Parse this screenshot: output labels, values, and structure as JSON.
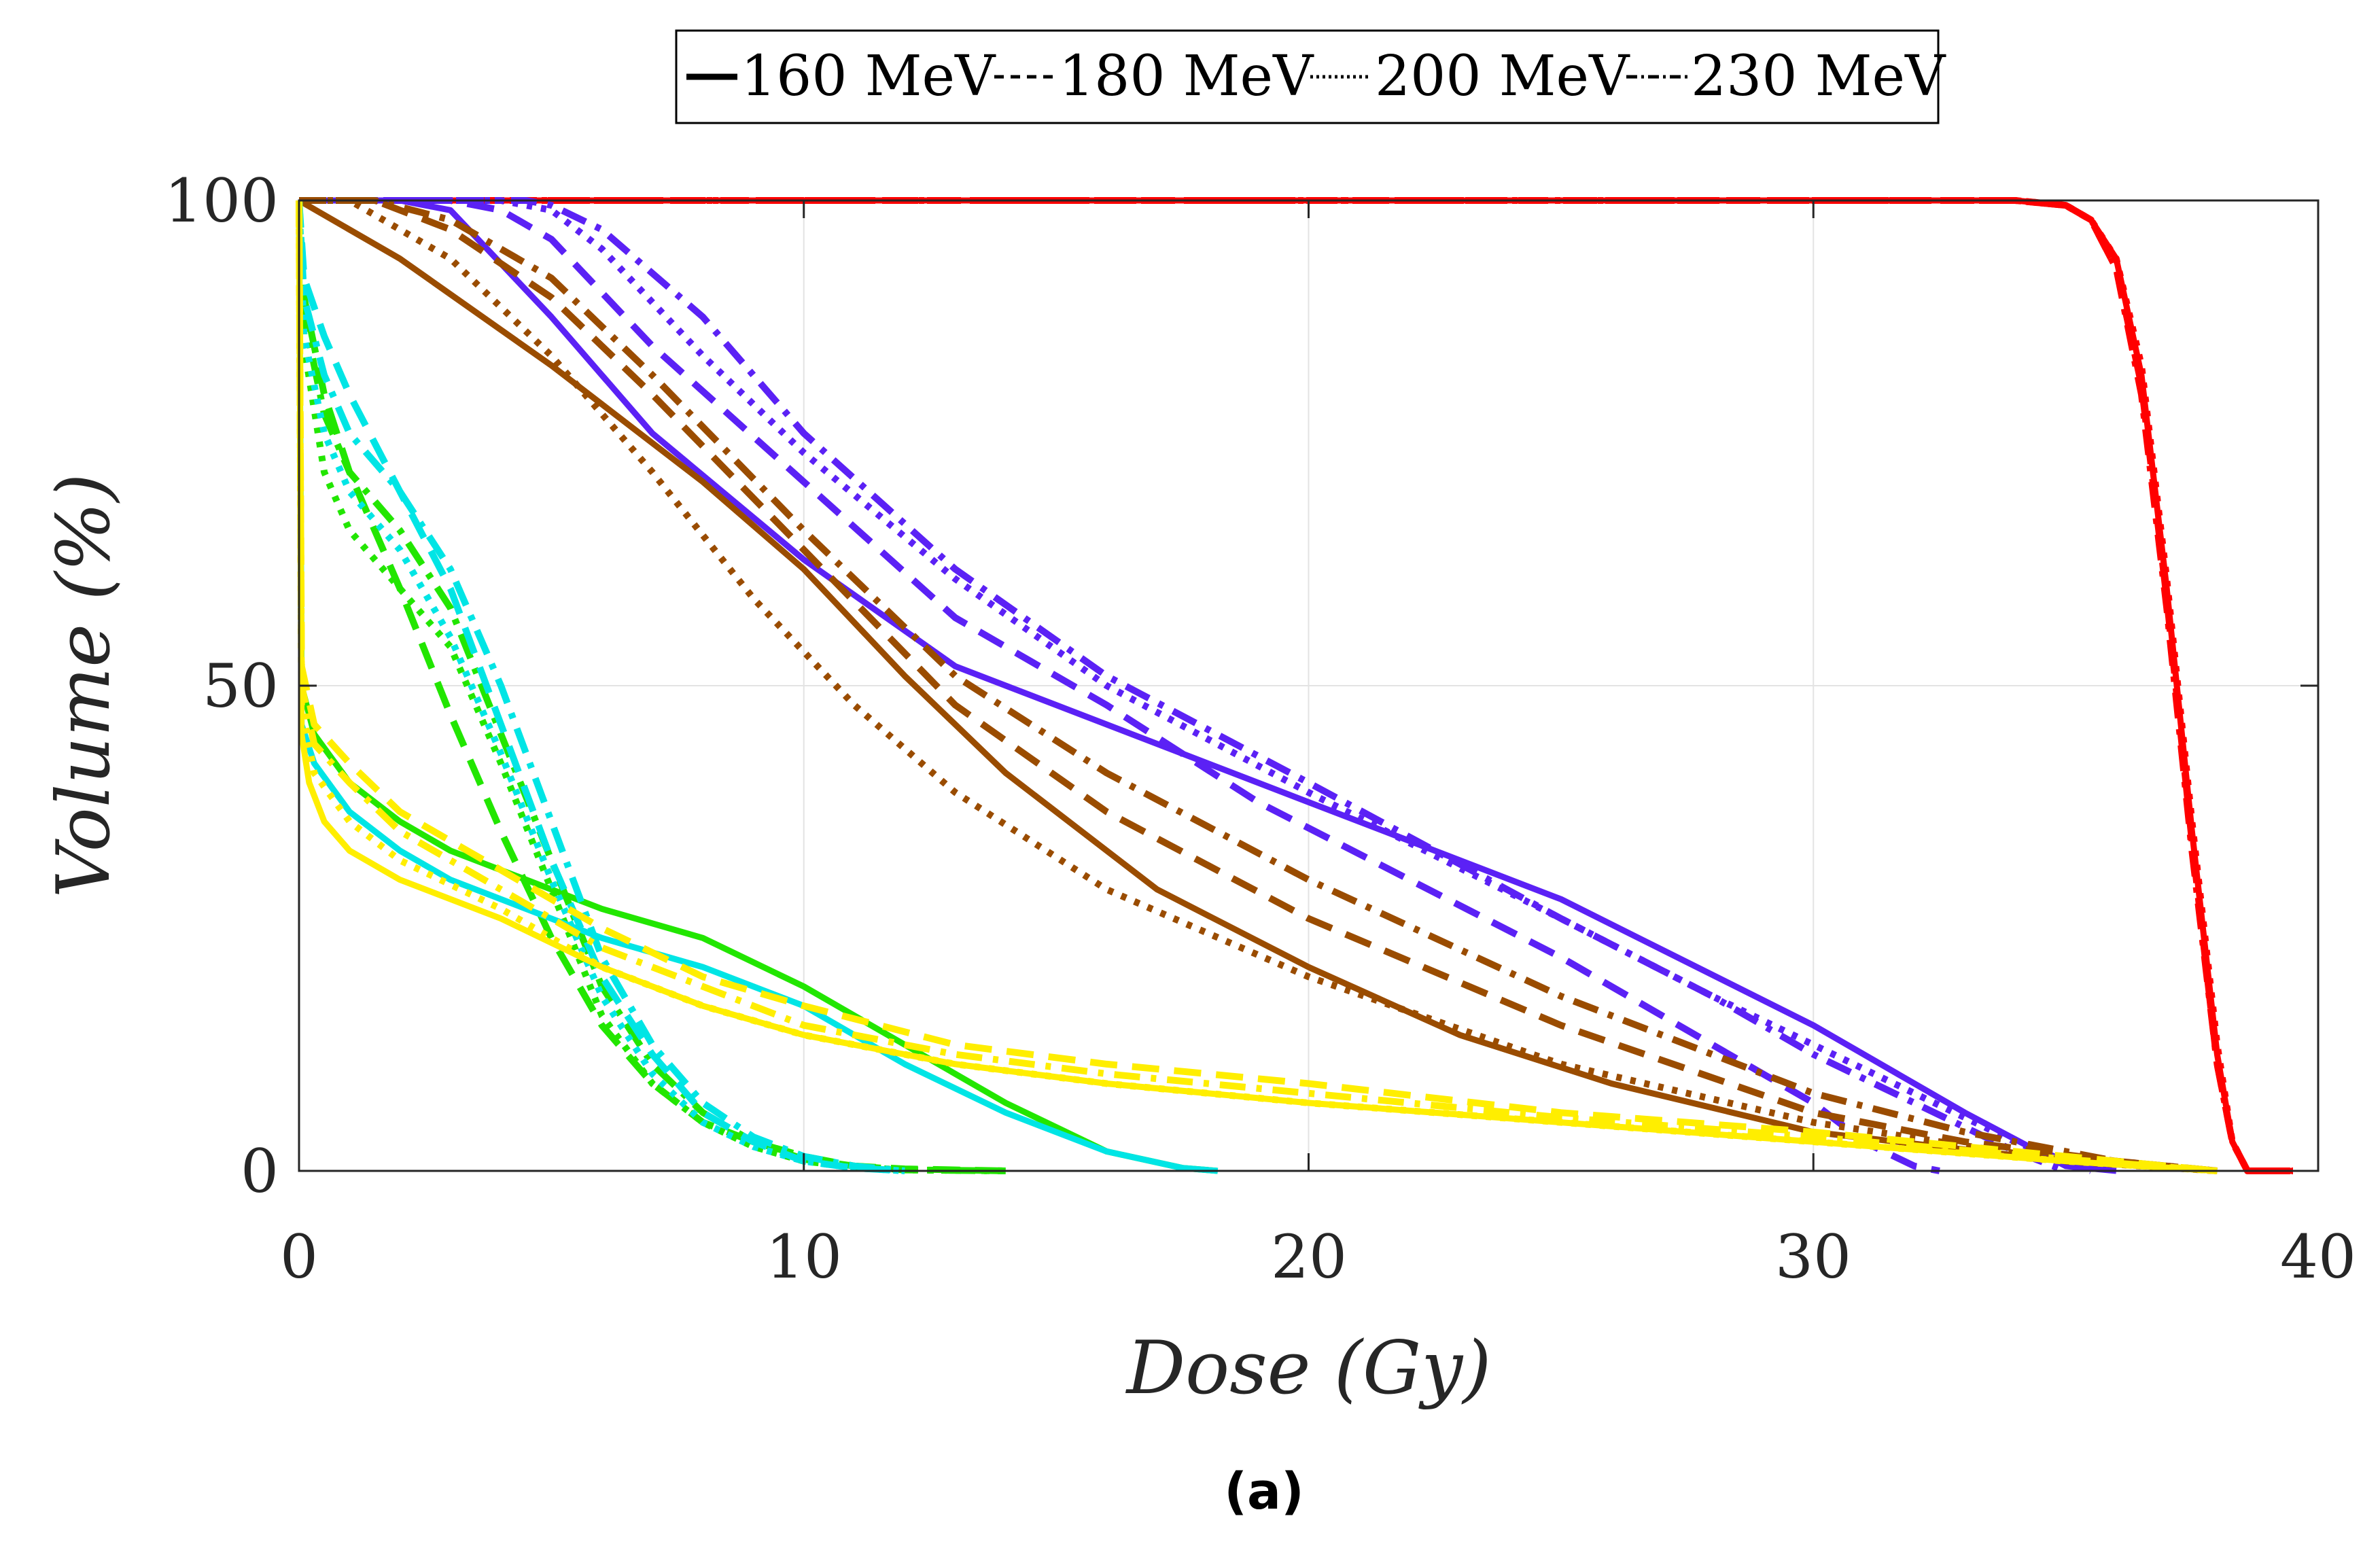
{
  "chart_data": {
    "type": "line",
    "title": "",
    "caption": "(a)",
    "xlabel": "Dose (Gy)",
    "ylabel": "Volume (%)",
    "xlim": [
      0,
      40
    ],
    "ylim": [
      0,
      100
    ],
    "xticks": [
      0,
      10,
      20,
      30,
      40
    ],
    "yticks": [
      0,
      50,
      100
    ],
    "xtick_labels": [
      "0",
      "10",
      "20",
      "30",
      "40"
    ],
    "ytick_labels": [
      "0",
      "50",
      "100"
    ],
    "grid": true,
    "legend_position": "top-center",
    "legend": [
      {
        "label": "160 MeV",
        "style": "solid"
      },
      {
        "label": "180 MeV",
        "style": "dashed"
      },
      {
        "label": "200 MeV",
        "style": "dotted"
      },
      {
        "label": "230 MeV",
        "style": "dashdot"
      }
    ],
    "series": [
      {
        "name": "red-160",
        "color": "#ff0000",
        "style": "solid",
        "x": [
          0,
          34.0,
          35.0,
          35.5,
          36.0,
          36.5,
          37.0,
          37.5,
          38.0,
          38.3,
          38.6,
          39.5
        ],
        "y": [
          100,
          100,
          99.5,
          98,
          94,
          82,
          60,
          35,
          12,
          3,
          0,
          0
        ]
      },
      {
        "name": "red-180",
        "color": "#ff0000",
        "style": "dashed",
        "x": [
          0,
          34.0,
          35.0,
          35.5,
          36.0,
          36.5,
          37.0,
          37.5,
          38.0,
          38.3,
          38.6,
          39.5
        ],
        "y": [
          100,
          100,
          99.5,
          98,
          93,
          81,
          59,
          34,
          11,
          3,
          0,
          0
        ]
      },
      {
        "name": "red-200",
        "color": "#ff0000",
        "style": "dotted",
        "x": [
          0,
          34.0,
          35.0,
          35.5,
          36.0,
          36.5,
          37.0,
          37.5,
          38.0,
          38.3,
          38.6,
          39.5
        ],
        "y": [
          100,
          100,
          99.5,
          98,
          94,
          83,
          61,
          36,
          13,
          3,
          0,
          0
        ]
      },
      {
        "name": "red-230",
        "color": "#ff0000",
        "style": "dashdot",
        "x": [
          0,
          34.0,
          35.0,
          35.5,
          36.0,
          36.5,
          37.0,
          37.5,
          38.0,
          38.3,
          38.6,
          39.5
        ],
        "y": [
          100,
          100,
          99.5,
          98,
          93,
          80,
          58,
          33,
          11,
          3,
          0,
          0
        ]
      },
      {
        "name": "violet-160",
        "color": "#5b21f5",
        "style": "solid",
        "x": [
          0,
          2,
          3,
          5,
          7,
          10,
          13,
          17,
          20,
          25,
          30,
          33,
          35,
          36
        ],
        "y": [
          100,
          100,
          99,
          88,
          76,
          63,
          52,
          44,
          38,
          28,
          15,
          6,
          0.5,
          0
        ]
      },
      {
        "name": "violet-180",
        "color": "#5b21f5",
        "style": "dashed",
        "x": [
          0,
          3,
          4,
          5,
          7,
          10,
          13,
          16,
          19,
          22,
          25,
          28,
          30,
          31,
          32,
          32.5
        ],
        "y": [
          100,
          100,
          99,
          96,
          85,
          71,
          57,
          48,
          38,
          30,
          22,
          13,
          7,
          3,
          0.5,
          0
        ]
      },
      {
        "name": "violet-200",
        "color": "#5b21f5",
        "style": "dotted",
        "x": [
          0,
          4,
          5,
          6,
          8,
          10,
          13,
          16,
          20,
          25,
          28,
          30,
          32,
          34,
          35,
          35.5
        ],
        "y": [
          100,
          100,
          99,
          95,
          84,
          74,
          61,
          50,
          39,
          26,
          18,
          13,
          8,
          3,
          1,
          0
        ]
      },
      {
        "name": "violet-230",
        "color": "#5b21f5",
        "style": "dashdot",
        "x": [
          0,
          4.5,
          5,
          6,
          8,
          10,
          13,
          16,
          20,
          25,
          28,
          30,
          32,
          34,
          35
        ],
        "y": [
          100,
          100,
          99.5,
          97,
          88,
          76,
          62,
          51,
          40,
          26,
          18,
          12,
          7,
          2,
          0
        ]
      },
      {
        "name": "brown-160",
        "color": "#9a4c00",
        "style": "solid",
        "x": [
          0,
          2,
          5,
          8,
          10,
          12,
          14,
          17,
          20,
          23,
          26,
          30,
          35,
          38
        ],
        "y": [
          100,
          94,
          83,
          71,
          62,
          51,
          41,
          29,
          21,
          14,
          9,
          4,
          1,
          0
        ]
      },
      {
        "name": "brown-180",
        "color": "#9a4c00",
        "style": "dashed",
        "x": [
          0,
          1.5,
          3,
          5,
          7,
          10,
          13,
          16,
          20,
          25,
          30,
          33,
          36,
          38
        ],
        "y": [
          100,
          100,
          97,
          90,
          80,
          64,
          48,
          37,
          26,
          15,
          6,
          3,
          1,
          0
        ]
      },
      {
        "name": "brown-200",
        "color": "#9a4c00",
        "style": "dotted",
        "x": [
          0,
          1,
          3,
          5,
          7,
          9,
          11,
          13,
          16,
          20,
          25,
          30,
          35,
          38
        ],
        "y": [
          100,
          100,
          94,
          84,
          72,
          59,
          48,
          39,
          29,
          20,
          11,
          5,
          1,
          0
        ]
      },
      {
        "name": "brown-230",
        "color": "#9a4c00",
        "style": "dashdot",
        "x": [
          0,
          1.5,
          3,
          5,
          7,
          10,
          13,
          16,
          20,
          25,
          30,
          33,
          36,
          38
        ],
        "y": [
          100,
          100,
          98,
          92,
          82,
          66,
          51,
          41,
          30,
          18,
          8,
          4,
          1,
          0
        ]
      },
      {
        "name": "green-160",
        "color": "#22e600",
        "style": "solid",
        "x": [
          0,
          0.05,
          0.3,
          1,
          2,
          3,
          4,
          6,
          8,
          10,
          12,
          14,
          16,
          17.5,
          18.2
        ],
        "y": [
          100,
          50,
          45,
          40,
          36,
          33,
          31,
          27,
          24,
          19,
          13,
          7,
          2,
          0.3,
          0
        ]
      },
      {
        "name": "green-180",
        "color": "#22e600",
        "style": "dashed",
        "x": [
          0,
          0.1,
          0.5,
          1,
          2,
          3,
          4,
          5,
          6,
          7,
          8,
          9,
          10,
          11,
          12,
          14
        ],
        "y": [
          100,
          90,
          80,
          72,
          60,
          47,
          35,
          24,
          15,
          9,
          5,
          3,
          1.5,
          0.5,
          0.2,
          0
        ]
      },
      {
        "name": "green-200",
        "color": "#22e600",
        "style": "dotted",
        "x": [
          0,
          0.1,
          0.5,
          1,
          2,
          3,
          4,
          5,
          6,
          7,
          8,
          9,
          10,
          11,
          12,
          14
        ],
        "y": [
          100,
          85,
          72,
          66,
          60,
          54,
          42,
          29,
          16,
          9,
          5,
          2.5,
          1,
          0.4,
          0.1,
          0
        ]
      },
      {
        "name": "green-230",
        "color": "#22e600",
        "style": "dashdot",
        "x": [
          0,
          0.1,
          0.5,
          1,
          2,
          3,
          4,
          5,
          6,
          7,
          8,
          9,
          10,
          11,
          12,
          14
        ],
        "y": [
          100,
          88,
          78,
          72,
          66,
          58,
          45,
          32,
          19,
          11,
          6,
          3,
          1.2,
          0.5,
          0.1,
          0
        ]
      },
      {
        "name": "cyan-160",
        "color": "#00e5e5",
        "style": "solid",
        "x": [
          0,
          0.05,
          0.3,
          1,
          2,
          3,
          4,
          6,
          8,
          10,
          12,
          14,
          16,
          17.5,
          18.2
        ],
        "y": [
          100,
          46,
          42,
          37,
          33,
          30,
          28,
          24,
          21,
          17,
          11,
          6,
          2,
          0.3,
          0
        ]
      },
      {
        "name": "cyan-180",
        "color": "#00e5e5",
        "style": "dashed",
        "x": [
          0,
          0.1,
          0.5,
          1,
          2,
          3,
          4,
          5,
          6,
          7,
          8,
          9,
          10,
          11,
          12
        ],
        "y": [
          100,
          92,
          86,
          80,
          70,
          60,
          46,
          32,
          20,
          12,
          6,
          3,
          1,
          0.3,
          0
        ]
      },
      {
        "name": "cyan-200",
        "color": "#00e5e5",
        "style": "dotted",
        "x": [
          0,
          0.1,
          0.5,
          1,
          2,
          3,
          4,
          5,
          6,
          7,
          8,
          9,
          10,
          11,
          12
        ],
        "y": [
          100,
          86,
          76,
          70,
          64,
          55,
          43,
          30,
          18,
          10,
          5,
          2.5,
          1,
          0.3,
          0
        ]
      },
      {
        "name": "cyan-230",
        "color": "#00e5e5",
        "style": "dashdot",
        "x": [
          0,
          0.1,
          0.5,
          1,
          2,
          3,
          4,
          5,
          6,
          7,
          8,
          9,
          10,
          11,
          12
        ],
        "y": [
          100,
          90,
          82,
          76,
          70,
          62,
          50,
          36,
          22,
          13,
          7,
          3.5,
          1.5,
          0.5,
          0
        ]
      },
      {
        "name": "yellow-160",
        "color": "#ffee00",
        "style": "solid",
        "x": [
          0,
          0.05,
          0.2,
          0.5,
          1,
          2,
          4,
          6,
          8,
          10,
          13,
          16,
          20,
          25,
          30,
          35,
          38
        ],
        "y": [
          100,
          45,
          40,
          36,
          33,
          30,
          26,
          21,
          17,
          14,
          11,
          9,
          7,
          5,
          3,
          1,
          0
        ]
      },
      {
        "name": "yellow-180",
        "color": "#ffee00",
        "style": "dashed",
        "x": [
          0,
          0.05,
          0.3,
          1,
          2,
          4,
          6,
          8,
          10,
          13,
          16,
          20,
          25,
          30,
          35,
          38
        ],
        "y": [
          100,
          52,
          46,
          42,
          37,
          31,
          25,
          20,
          17,
          13,
          11,
          9,
          6,
          4,
          1.5,
          0
        ]
      },
      {
        "name": "yellow-200",
        "color": "#ffee00",
        "style": "dotted",
        "x": [
          0,
          0.05,
          0.3,
          1,
          2,
          4,
          6,
          8,
          10,
          13,
          16,
          20,
          25,
          30,
          35,
          38
        ],
        "y": [
          100,
          48,
          41,
          36,
          32,
          27,
          21,
          17,
          14,
          11,
          9,
          7,
          5,
          3,
          1,
          0
        ]
      },
      {
        "name": "yellow-230",
        "color": "#ffee00",
        "style": "dashdot",
        "x": [
          0,
          0.05,
          0.3,
          1,
          2,
          4,
          6,
          8,
          10,
          13,
          16,
          20,
          25,
          30,
          35,
          38
        ],
        "y": [
          100,
          50,
          44,
          40,
          35,
          29,
          23,
          19,
          15,
          12,
          10,
          8,
          5.5,
          3.5,
          1.2,
          0
        ]
      }
    ]
  }
}
